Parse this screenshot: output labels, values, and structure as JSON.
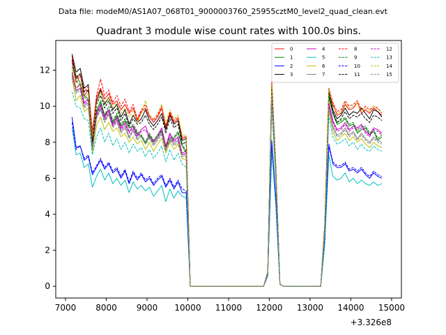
{
  "figure": {
    "suptitle": "Data file: modeM0/AS1A07_068T01_9000003760_25955cztM0_level2_quad_clean.evt"
  },
  "chart_data": {
    "type": "line",
    "title": "Quadrant 3 module wise count rates with 100.0s bins.",
    "xlabel": "",
    "ylabel": "",
    "x_offset_label": "+3.326e8",
    "x_offset": 332600000,
    "xlim": [
      6760,
      15240
    ],
    "ylim": [
      -0.65,
      13.65
    ],
    "xticks": [
      7000,
      8000,
      9000,
      10000,
      11000,
      12000,
      13000,
      14000,
      15000
    ],
    "xtick_labels": [
      "7000",
      "8000",
      "9000",
      "10000",
      "11000",
      "12000",
      "13000",
      "14000",
      "15000"
    ],
    "yticks": [
      0,
      2,
      4,
      6,
      8,
      10,
      12
    ],
    "ytick_labels": [
      "0",
      "2",
      "4",
      "6",
      "8",
      "10",
      "12"
    ],
    "legend_position": "top-right",
    "legend_columns": 4,
    "time_segments": [
      {
        "start": 7160,
        "n": 29,
        "step": 100
      },
      {
        "start": 10060,
        "n": 19,
        "step": 100,
        "note": "gap, zero counts"
      },
      {
        "start": 11960,
        "n": 4,
        "step": 100,
        "note": "short spike"
      },
      {
        "start": 12360,
        "n": 10,
        "step": 100,
        "note": "gap, zero counts"
      },
      {
        "start": 13360,
        "n": 15,
        "step": 100
      }
    ],
    "series": [
      {
        "name": "0",
        "color": "#ff0000",
        "dash": "solid",
        "seg1": [
          12.8,
          11.5,
          11.8,
          10.6,
          10.9,
          8.6,
          10.5,
          11.0,
          10.4,
          10.7,
          10.1,
          10.3,
          9.8,
          10.1,
          9.6,
          9.9,
          9.2,
          9.7,
          9.9,
          9.4,
          9.1,
          9.4,
          9.9,
          8.8,
          9.6,
          9.1,
          9.3,
          8.2,
          8.3
        ],
        "spike": [
          0.8,
          11.2,
          6.5,
          0.1
        ],
        "seg2": [
          3.4,
          10.8,
          10.1,
          9.5,
          9.6,
          10.1,
          9.8,
          9.9,
          10.2,
          9.6,
          9.8,
          9.6,
          9.9,
          9.7,
          9.5
        ]
      },
      {
        "name": "1",
        "color": "#008000",
        "dash": "solid",
        "seg1": [
          12.4,
          11.7,
          11.3,
          10.6,
          10.4,
          7.9,
          9.7,
          10.3,
          9.5,
          9.8,
          9.1,
          9.5,
          8.9,
          9.2,
          8.8,
          8.9,
          8.5,
          8.3,
          7.9,
          8.4,
          8.0,
          8.3,
          8.6,
          7.7,
          8.0,
          8.2,
          8.5,
          7.8,
          7.4
        ],
        "spike": [
          0.8,
          10.9,
          6.3,
          0.1
        ],
        "seg2": [
          3.2,
          10.5,
          9.6,
          9.0,
          9.1,
          9.3,
          8.9,
          9.0,
          8.5,
          8.7,
          8.8,
          8.4,
          8.6,
          8.1,
          8.3
        ]
      },
      {
        "name": "2",
        "color": "#0000ff",
        "dash": "solid",
        "seg1": [
          9.4,
          7.7,
          7.8,
          7.0,
          7.2,
          6.2,
          6.6,
          7.0,
          6.5,
          6.8,
          6.3,
          6.5,
          6.0,
          6.4,
          5.7,
          6.3,
          5.9,
          6.2,
          5.8,
          6.0,
          5.6,
          5.9,
          6.1,
          5.5,
          5.9,
          5.4,
          5.8,
          5.2,
          5.2
        ],
        "spike": [
          0.6,
          8.0,
          4.8,
          0.1
        ],
        "seg2": [
          2.6,
          7.8,
          6.8,
          6.6,
          6.6,
          6.8,
          6.4,
          6.5,
          6.3,
          6.5,
          6.2,
          6.0,
          6.3,
          6.1,
          6.0
        ]
      },
      {
        "name": "3",
        "color": "#000000",
        "dash": "solid",
        "seg1": [
          12.9,
          11.9,
          12.1,
          11.0,
          11.2,
          8.2,
          10.3,
          10.9,
          10.1,
          10.5,
          9.8,
          10.1,
          9.4,
          9.8,
          9.0,
          9.5,
          9.1,
          9.3,
          9.8,
          9.2,
          8.9,
          9.2,
          9.6,
          8.7,
          9.5,
          9.0,
          9.2,
          8.1,
          8.2
        ],
        "spike": [
          0.8,
          11.3,
          6.6,
          0.1
        ],
        "seg2": [
          3.4,
          10.9,
          9.8,
          9.3,
          9.5,
          9.9,
          9.5,
          9.7,
          9.6,
          9.9,
          9.6,
          9.3,
          9.8,
          9.7,
          9.4
        ]
      },
      {
        "name": "4",
        "color": "#bf00bf",
        "dash": "solid",
        "seg1": [
          11.9,
          11.0,
          11.2,
          10.2,
          10.4,
          7.8,
          9.6,
          10.1,
          9.4,
          9.8,
          9.0,
          9.4,
          8.8,
          9.1,
          8.6,
          8.9,
          8.4,
          8.7,
          8.9,
          8.3,
          8.1,
          8.4,
          8.8,
          7.8,
          8.5,
          8.1,
          8.3,
          7.4,
          7.5
        ],
        "spike": [
          0.7,
          10.7,
          6.2,
          0.1
        ],
        "seg2": [
          3.1,
          10.2,
          9.2,
          8.7,
          8.8,
          9.1,
          8.7,
          8.9,
          8.8,
          9.0,
          8.6,
          8.4,
          8.8,
          8.7,
          8.5
        ]
      },
      {
        "name": "5",
        "color": "#00bfbf",
        "dash": "solid",
        "seg1": [
          8.8,
          7.3,
          7.4,
          6.6,
          6.8,
          5.5,
          6.1,
          6.5,
          5.9,
          6.3,
          5.7,
          6.0,
          5.6,
          5.9,
          5.2,
          5.8,
          5.4,
          5.6,
          5.3,
          5.5,
          5.0,
          5.3,
          5.6,
          4.7,
          5.4,
          4.9,
          5.3,
          5.0,
          4.9
        ],
        "spike": [
          0.6,
          7.5,
          4.5,
          0.1
        ],
        "seg2": [
          2.3,
          7.3,
          6.1,
          5.9,
          6.0,
          6.3,
          5.8,
          6.0,
          5.7,
          5.9,
          5.7,
          5.6,
          5.8,
          5.6,
          5.7
        ]
      },
      {
        "name": "6",
        "color": "#bfbf00",
        "dash": "solid",
        "seg1": [
          11.5,
          10.3,
          10.6,
          9.7,
          9.9,
          7.4,
          8.9,
          9.4,
          8.7,
          9.1,
          8.6,
          8.8,
          8.3,
          8.5,
          8.0,
          8.3,
          7.9,
          8.1,
          7.6,
          8.0,
          7.5,
          7.9,
          8.2,
          7.4,
          8.0,
          7.6,
          7.9,
          7.1,
          7.0
        ],
        "spike": [
          0.7,
          10.3,
          6.0,
          0.1
        ],
        "seg2": [
          3.0,
          9.7,
          8.6,
          8.1,
          8.3,
          8.5,
          8.1,
          8.3,
          8.0,
          8.2,
          7.9,
          7.7,
          8.0,
          7.8,
          7.7
        ]
      },
      {
        "name": "7",
        "color": "#808080",
        "dash": "solid",
        "seg1": [
          11.8,
          10.8,
          11.0,
          10.0,
          10.2,
          7.7,
          9.4,
          9.9,
          9.2,
          9.6,
          8.9,
          9.2,
          8.6,
          8.9,
          8.3,
          8.7,
          8.2,
          8.4,
          8.0,
          8.3,
          7.9,
          8.2,
          8.5,
          7.6,
          8.3,
          7.9,
          8.1,
          7.3,
          7.3
        ],
        "spike": [
          0.7,
          10.5,
          6.1,
          0.1
        ],
        "seg2": [
          3.0,
          10.0,
          8.9,
          8.4,
          8.5,
          8.8,
          8.4,
          8.6,
          8.2,
          8.5,
          8.2,
          8.0,
          8.3,
          8.1,
          8.0
        ]
      },
      {
        "name": "8",
        "color": "#ff0000",
        "dash": "dashed",
        "seg1": [
          12.5,
          11.3,
          11.7,
          10.8,
          11.1,
          8.5,
          10.6,
          11.5,
          10.6,
          10.9,
          10.2,
          10.6,
          10.0,
          10.4,
          9.7,
          10.1,
          9.3,
          9.8,
          10.1,
          9.5,
          9.2,
          9.5,
          10.0,
          8.9,
          9.7,
          9.2,
          9.4,
          8.3,
          8.3
        ],
        "spike": [
          0.8,
          11.4,
          6.6,
          0.1
        ],
        "seg2": [
          3.5,
          11.0,
          10.2,
          9.7,
          9.8,
          10.3,
          10.0,
          10.1,
          10.3,
          9.8,
          10.0,
          9.8,
          10.0,
          9.9,
          9.6
        ]
      },
      {
        "name": "9",
        "color": "#008000",
        "dash": "dashed",
        "seg1": [
          12.2,
          11.4,
          11.2,
          10.5,
          10.3,
          7.8,
          9.8,
          10.2,
          9.5,
          10.0,
          9.2,
          9.6,
          9.0,
          9.3,
          8.8,
          9.0,
          8.6,
          8.4,
          8.0,
          8.5,
          8.1,
          8.4,
          8.7,
          7.8,
          8.1,
          8.3,
          8.6,
          7.9,
          7.5
        ],
        "spike": [
          0.8,
          11.0,
          6.3,
          0.1
        ],
        "seg2": [
          3.2,
          10.6,
          9.7,
          9.1,
          9.2,
          9.4,
          9.0,
          9.1,
          8.6,
          8.8,
          8.9,
          8.5,
          8.7,
          8.2,
          8.4
        ]
      },
      {
        "name": "10",
        "color": "#0000ff",
        "dash": "dashed",
        "seg1": [
          9.1,
          7.6,
          7.8,
          7.1,
          7.3,
          6.3,
          6.7,
          7.1,
          6.6,
          6.9,
          6.4,
          6.6,
          6.1,
          6.5,
          5.8,
          6.4,
          6.0,
          6.3,
          5.9,
          6.1,
          5.7,
          6.0,
          6.2,
          5.6,
          6.0,
          5.5,
          5.9,
          5.4,
          5.3
        ],
        "spike": [
          0.6,
          8.1,
          4.9,
          0.1
        ],
        "seg2": [
          2.6,
          7.9,
          6.9,
          6.7,
          6.7,
          6.9,
          6.5,
          6.6,
          6.4,
          6.6,
          6.3,
          6.1,
          6.4,
          6.2,
          6.1
        ]
      },
      {
        "name": "11",
        "color": "#000000",
        "dash": "dashed",
        "seg1": [
          12.6,
          11.6,
          11.8,
          10.8,
          10.9,
          8.0,
          10.1,
          10.6,
          9.9,
          10.3,
          9.6,
          9.9,
          9.2,
          9.6,
          8.9,
          9.3,
          9.0,
          9.1,
          9.5,
          9.0,
          8.7,
          9.0,
          9.4,
          8.5,
          9.3,
          8.8,
          9.0,
          7.9,
          8.0
        ],
        "spike": [
          0.8,
          11.1,
          6.5,
          0.1
        ],
        "seg2": [
          3.3,
          10.7,
          9.6,
          9.1,
          9.3,
          9.7,
          9.3,
          9.5,
          9.4,
          9.6,
          9.3,
          9.1,
          9.5,
          9.4,
          9.2
        ]
      },
      {
        "name": "12",
        "color": "#bf00bf",
        "dash": "dashed",
        "seg1": [
          11.7,
          10.9,
          11.0,
          10.1,
          10.3,
          7.7,
          9.5,
          10.0,
          9.3,
          9.7,
          8.9,
          9.3,
          8.7,
          9.0,
          8.5,
          8.8,
          8.3,
          8.6,
          8.7,
          8.2,
          8.0,
          8.3,
          8.7,
          7.7,
          8.4,
          8.0,
          8.2,
          7.3,
          7.4
        ],
        "spike": [
          0.7,
          10.6,
          6.1,
          0.1
        ],
        "seg2": [
          3.1,
          10.1,
          9.1,
          8.6,
          8.7,
          9.0,
          8.6,
          8.8,
          8.7,
          8.9,
          8.5,
          8.3,
          8.7,
          8.6,
          8.4
        ]
      },
      {
        "name": "13",
        "color": "#00bfbf",
        "dash": "dashed",
        "seg1": [
          10.8,
          10.0,
          9.9,
          9.3,
          9.2,
          7.3,
          8.3,
          8.8,
          8.0,
          8.5,
          7.8,
          8.2,
          7.6,
          8.0,
          7.4,
          7.9,
          7.5,
          7.7,
          7.2,
          7.6,
          7.1,
          7.4,
          7.8,
          6.9,
          7.6,
          7.0,
          7.4,
          6.8,
          6.6
        ],
        "spike": [
          0.7,
          9.9,
          5.8,
          0.1
        ],
        "seg2": [
          2.9,
          9.4,
          8.3,
          7.9,
          8.0,
          8.2,
          7.8,
          8.0,
          7.6,
          7.9,
          7.6,
          7.5,
          7.8,
          7.6,
          7.5
        ]
      },
      {
        "name": "14",
        "color": "#bfbf00",
        "dash": "dashed",
        "seg1": [
          12.1,
          11.0,
          11.3,
          10.5,
          10.7,
          8.3,
          10.2,
          10.8,
          10.2,
          10.5,
          9.9,
          10.2,
          9.6,
          9.9,
          9.4,
          9.8,
          9.1,
          9.6,
          10.3,
          9.5,
          9.3,
          9.6,
          10.1,
          9.0,
          9.8,
          9.3,
          9.5,
          8.4,
          8.4
        ],
        "spike": [
          0.8,
          11.2,
          6.5,
          0.1
        ],
        "seg2": [
          3.4,
          10.9,
          10.0,
          9.6,
          9.7,
          10.2,
          9.9,
          10.0,
          10.2,
          9.7,
          9.9,
          9.7,
          10.0,
          9.8,
          9.7
        ]
      },
      {
        "name": "15",
        "color": "#808080",
        "dash": "dashed",
        "seg1": [
          11.6,
          10.7,
          10.9,
          9.9,
          10.1,
          7.6,
          9.3,
          9.8,
          9.1,
          9.5,
          8.8,
          9.1,
          8.5,
          8.8,
          8.2,
          8.6,
          8.1,
          8.3,
          7.9,
          8.2,
          7.8,
          8.1,
          8.4,
          7.5,
          8.2,
          7.8,
          8.0,
          7.2,
          7.2
        ],
        "spike": [
          0.7,
          10.4,
          6.0,
          0.1
        ],
        "seg2": [
          3.0,
          9.9,
          8.8,
          8.3,
          8.4,
          8.7,
          8.3,
          8.5,
          8.1,
          8.4,
          8.1,
          7.9,
          8.2,
          8.0,
          7.9
        ]
      }
    ]
  }
}
